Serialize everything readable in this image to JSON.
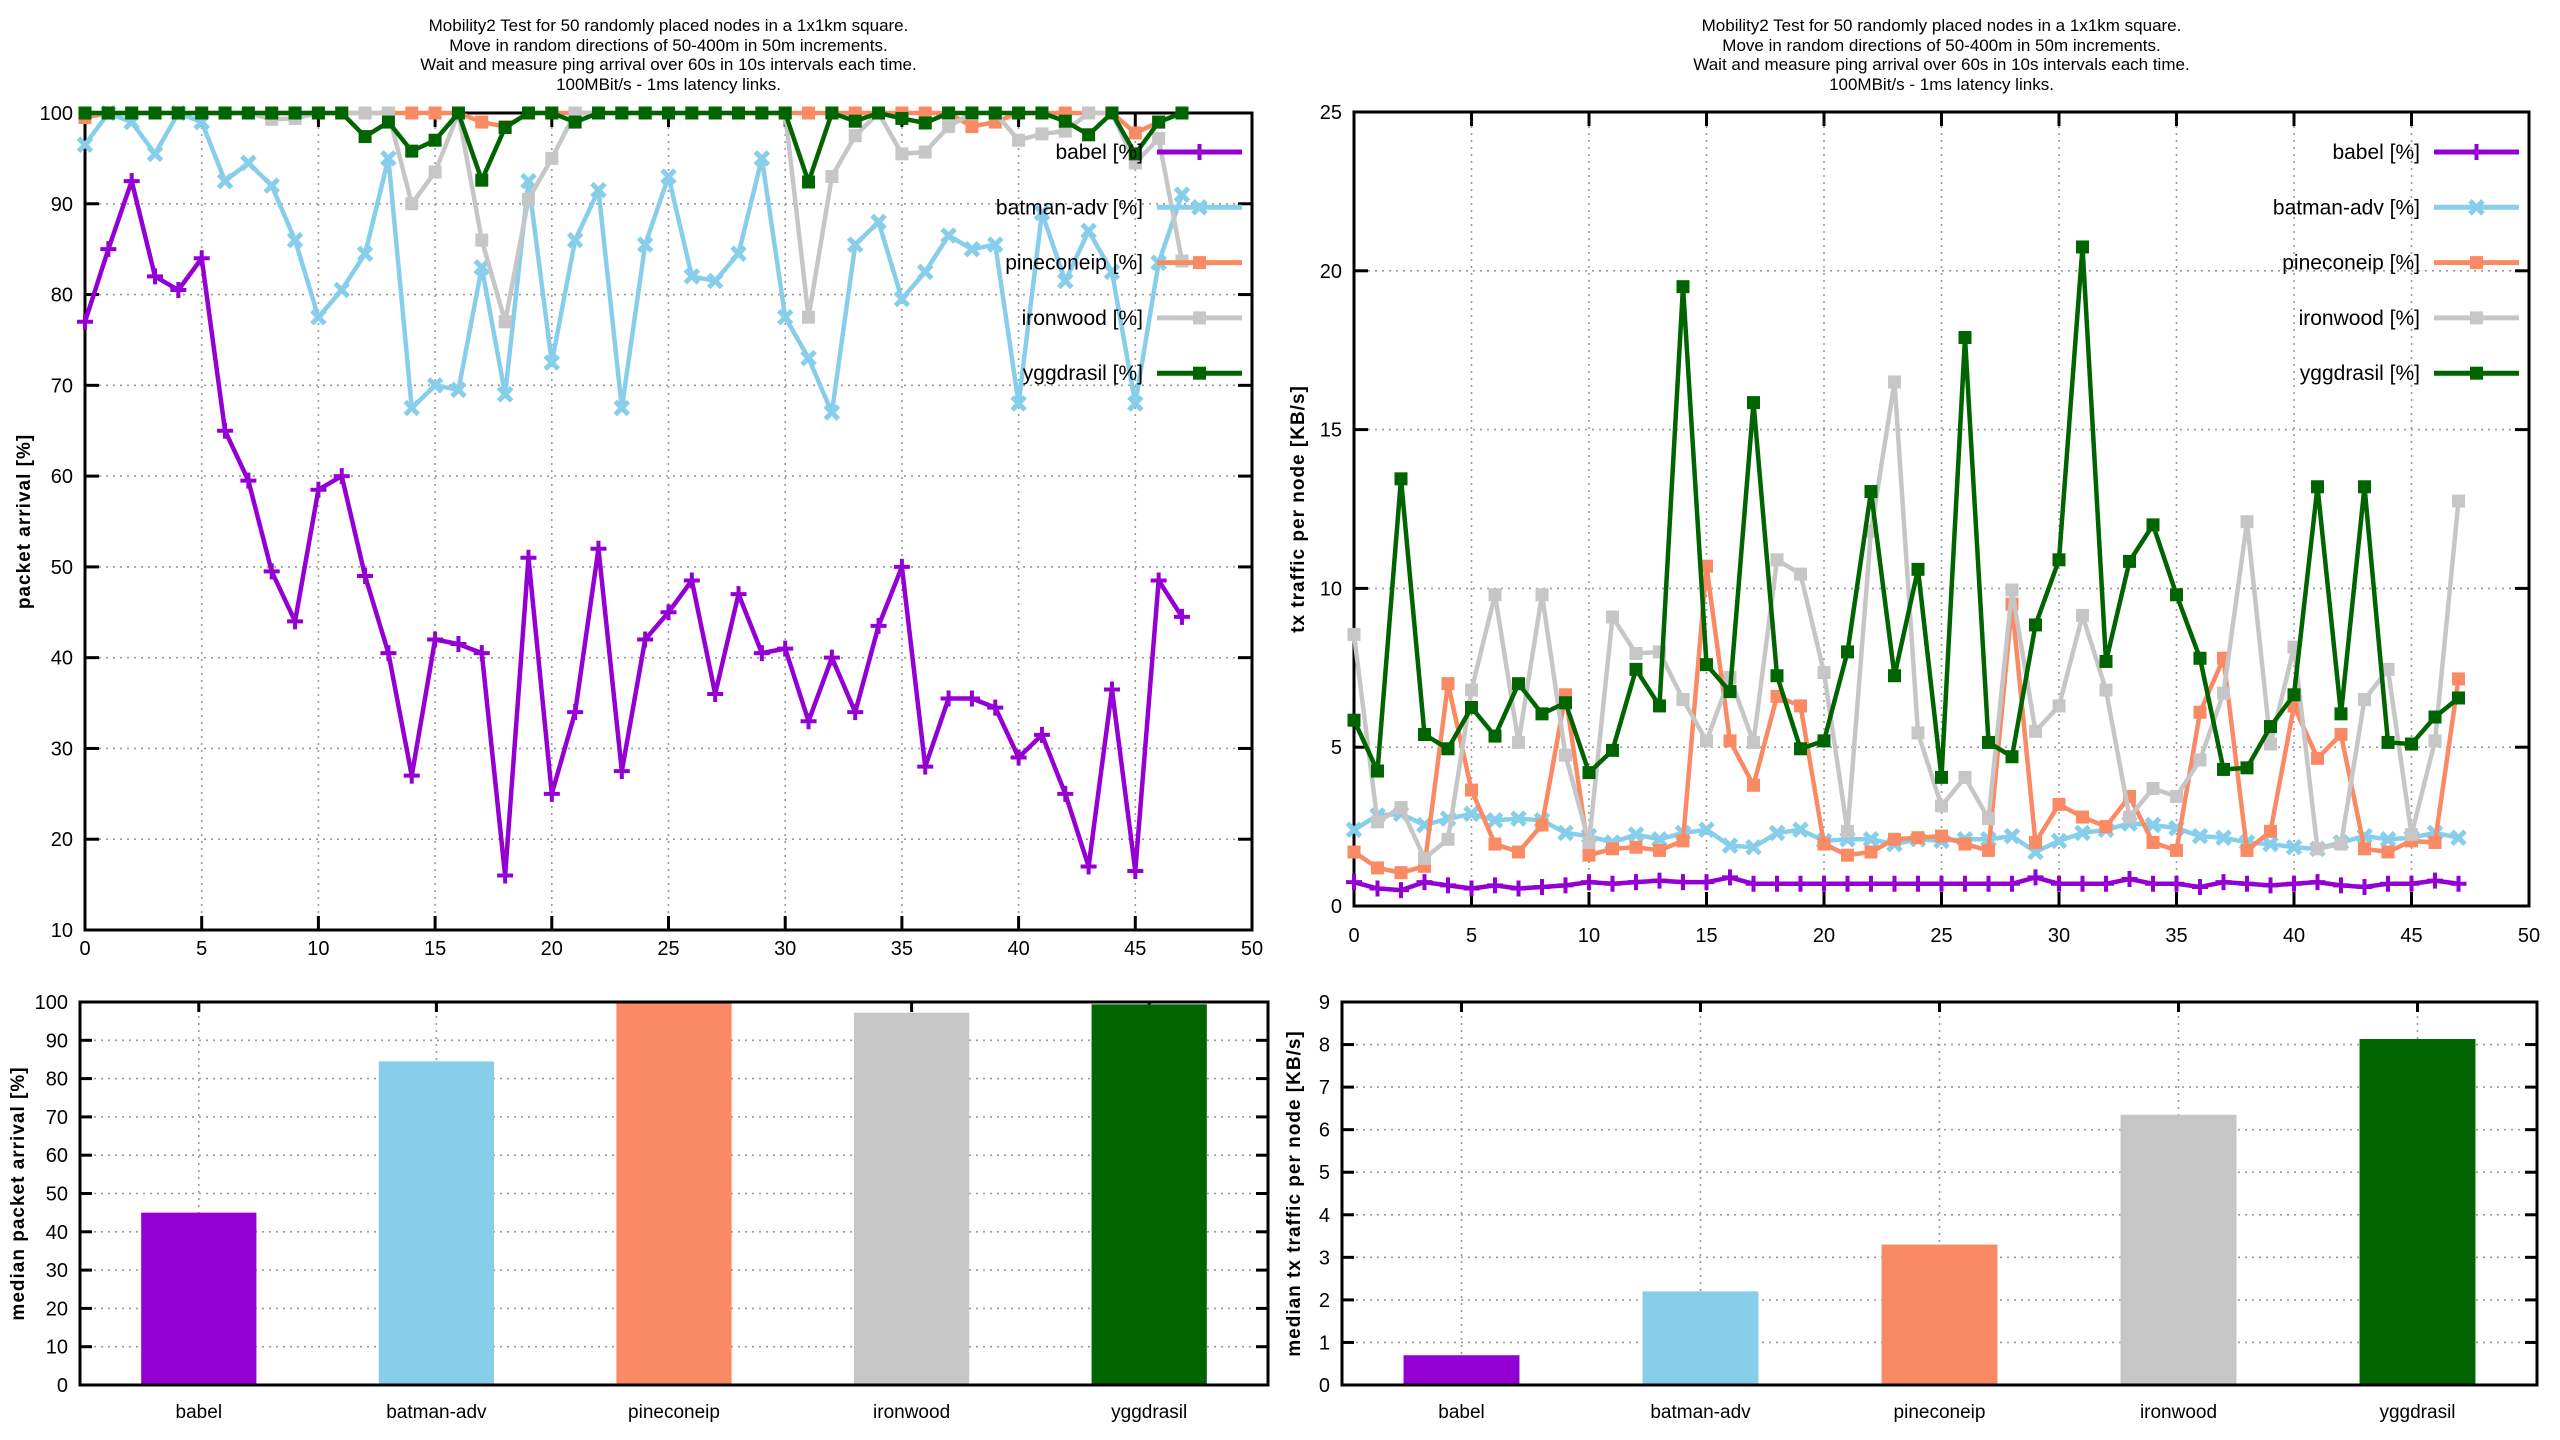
{
  "page": {
    "background": "#ffffff",
    "text_color": "#000000",
    "grid_color": "#9a9a9a",
    "axis_color": "#000000"
  },
  "title_lines": [
    "Mobility2 Test for 50 randomly placed nodes in a 1x1km square.",
    "Move in random directions of 50-400m in 50m increments.",
    "Wait and measure ping arrival over 60s in 10s intervals each time.",
    "100MBit/s - 1ms latency links."
  ],
  "palette": {
    "babel": "#9400d3",
    "batman-adv": "#87ceeb",
    "pineconeip": "#fa8a64",
    "ironwood": "#c6c6c6",
    "yggdrasil": "#006400"
  },
  "chart_data": [
    {
      "type": "line",
      "id": "packet-arrival-line",
      "title": [
        "Mobility2 Test for 50 randomly placed nodes in a 1x1km square.",
        "Move in random directions of 50-400m in 50m increments.",
        "Wait and measure ping arrival over 60s in 10s intervals each time.",
        "100MBit/s - 1ms latency links."
      ],
      "xlabel": "",
      "ylabel": "packet arrival [%]",
      "xlim": [
        0,
        50
      ],
      "ylim": [
        10,
        100
      ],
      "xtick_step": 5,
      "ytick_step": 10,
      "grid": true,
      "legend_position": "top-right-inside",
      "x": [
        0,
        1,
        2,
        3,
        4,
        5,
        6,
        7,
        8,
        9,
        10,
        11,
        12,
        13,
        14,
        15,
        16,
        17,
        18,
        19,
        20,
        21,
        22,
        23,
        24,
        25,
        26,
        27,
        28,
        29,
        30,
        31,
        32,
        33,
        34,
        35,
        36,
        37,
        38,
        39,
        40,
        41,
        42,
        43,
        44,
        45,
        46,
        47
      ],
      "series": [
        {
          "name": "babel",
          "label": "babel [%]",
          "color": "#9400d3",
          "marker": "plus",
          "values": [
            77,
            85,
            92.5,
            82,
            80.5,
            84,
            65,
            59.5,
            49.5,
            44,
            58.5,
            60,
            49,
            40.5,
            27,
            42,
            41.5,
            40.5,
            16,
            51,
            25,
            34,
            52,
            27.5,
            42,
            45,
            48.5,
            36,
            47,
            40.5,
            41,
            33,
            40,
            34,
            43.5,
            50,
            28,
            35.5,
            35.5,
            34.5,
            29,
            31.5,
            25,
            17,
            36.5,
            16.5,
            48.5,
            44.5
          ]
        },
        {
          "name": "batman-adv",
          "label": "batman-adv [%]",
          "color": "#87ceeb",
          "marker": "cross",
          "values": [
            96.5,
            100,
            99,
            95.5,
            100,
            99,
            92.5,
            94.5,
            92,
            86,
            77.5,
            80.5,
            84.5,
            95,
            67.5,
            70,
            69.5,
            83,
            69,
            92.5,
            72.5,
            86,
            91.5,
            67.5,
            85.5,
            93,
            82,
            81.5,
            84.5,
            95,
            77.5,
            73,
            67,
            85.5,
            88,
            79.5,
            82.5,
            86.5,
            85,
            85.5,
            68,
            89,
            81.5,
            87,
            82.5,
            68,
            83.5,
            91
          ]
        },
        {
          "name": "pineconeip",
          "label": "pineconeip [%]",
          "color": "#fa8a64",
          "marker": "square",
          "values": [
            99.5,
            100,
            100,
            100,
            100,
            100,
            100,
            100,
            100,
            100,
            100,
            100,
            100,
            100,
            100,
            100,
            100,
            99,
            98.5,
            100,
            100,
            100,
            100,
            100,
            100,
            100,
            100,
            100,
            100,
            100,
            100,
            100,
            100,
            100,
            100,
            100,
            100,
            100,
            98.5,
            99,
            100,
            100,
            100,
            100,
            100,
            97.8,
            99,
            100
          ]
        },
        {
          "name": "ironwood",
          "label": "ironwood [%]",
          "color": "#c6c6c6",
          "marker": "square",
          "values": [
            100,
            100,
            100,
            100,
            100,
            100,
            100,
            100,
            99.3,
            99.4,
            100,
            100,
            100,
            100,
            90,
            93.5,
            100,
            86,
            77,
            90.5,
            95,
            100,
            100,
            100,
            100,
            100,
            100,
            100,
            100,
            100,
            100,
            77.5,
            93,
            97.5,
            100,
            95.5,
            95.7,
            98.5,
            100,
            100,
            97,
            97.7,
            98,
            100,
            100,
            94.5,
            97.2,
            83.7
          ]
        },
        {
          "name": "yggdrasil",
          "label": "yggdrasil [%]",
          "color": "#006400",
          "marker": "square",
          "values": [
            100,
            100,
            100,
            100,
            100,
            100,
            100,
            100,
            100,
            100,
            100,
            100,
            97.4,
            99,
            95.8,
            97,
            100,
            92.6,
            98.4,
            100,
            100,
            99,
            100,
            100,
            100,
            100,
            100,
            100,
            100,
            100,
            100,
            92.4,
            100,
            99.1,
            100,
            99.4,
            98.9,
            100,
            100,
            100,
            100,
            100,
            99.1,
            97.6,
            100,
            95.5,
            99,
            100
          ]
        }
      ]
    },
    {
      "type": "line",
      "id": "tx-traffic-line",
      "title": [
        "Mobility2 Test for 50 randomly placed nodes in a 1x1km square.",
        "Move in random directions of 50-400m in 50m increments.",
        "Wait and measure ping arrival over 60s in 10s intervals each time.",
        "100MBit/s - 1ms latency links."
      ],
      "xlabel": "",
      "ylabel": "tx traffic per node [KB/s]",
      "xlim": [
        0,
        50
      ],
      "ylim": [
        0,
        25
      ],
      "xtick_step": 5,
      "ytick_step": 5,
      "grid": true,
      "legend_position": "top-right-inside",
      "x": [
        0,
        1,
        2,
        3,
        4,
        5,
        6,
        7,
        8,
        9,
        10,
        11,
        12,
        13,
        14,
        15,
        16,
        17,
        18,
        19,
        20,
        21,
        22,
        23,
        24,
        25,
        26,
        27,
        28,
        29,
        30,
        31,
        32,
        33,
        34,
        35,
        36,
        37,
        38,
        39,
        40,
        41,
        42,
        43,
        44,
        45,
        46,
        47
      ],
      "series": [
        {
          "name": "babel",
          "label": "babel [%]",
          "color": "#9400d3",
          "marker": "plus",
          "values": [
            0.75,
            0.55,
            0.5,
            0.75,
            0.65,
            0.55,
            0.65,
            0.55,
            0.6,
            0.65,
            0.75,
            0.7,
            0.75,
            0.8,
            0.75,
            0.75,
            0.9,
            0.7,
            0.7,
            0.7,
            0.7,
            0.7,
            0.7,
            0.7,
            0.7,
            0.7,
            0.7,
            0.7,
            0.7,
            0.9,
            0.7,
            0.7,
            0.7,
            0.85,
            0.7,
            0.7,
            0.6,
            0.75,
            0.7,
            0.65,
            0.7,
            0.75,
            0.65,
            0.6,
            0.7,
            0.7,
            0.8,
            0.7
          ]
        },
        {
          "name": "batman-adv",
          "label": "batman-adv [%]",
          "color": "#87ceeb",
          "marker": "cross",
          "values": [
            2.4,
            2.85,
            2.9,
            2.55,
            2.75,
            2.9,
            2.7,
            2.75,
            2.7,
            2.3,
            2.2,
            2.0,
            2.25,
            2.1,
            2.3,
            2.4,
            1.9,
            1.85,
            2.3,
            2.4,
            2.05,
            2.1,
            2.1,
            1.95,
            2.1,
            2.05,
            2.1,
            2.1,
            2.2,
            1.7,
            2.05,
            2.3,
            2.4,
            2.6,
            2.55,
            2.45,
            2.2,
            2.15,
            2.0,
            1.95,
            1.85,
            1.8,
            2.0,
            2.2,
            2.1,
            2.15,
            2.3,
            2.15
          ]
        },
        {
          "name": "pineconeip",
          "label": "pineconeip [%]",
          "color": "#fa8a64",
          "marker": "square",
          "values": [
            1.7,
            1.2,
            1.05,
            1.25,
            7.0,
            3.65,
            1.95,
            1.7,
            2.55,
            6.65,
            1.6,
            1.8,
            1.85,
            1.75,
            2.05,
            10.7,
            5.2,
            3.8,
            6.6,
            6.3,
            1.95,
            1.6,
            1.7,
            2.1,
            2.15,
            2.2,
            1.95,
            1.75,
            9.5,
            2.0,
            3.2,
            2.8,
            2.5,
            3.45,
            2.0,
            1.75,
            6.1,
            7.8,
            1.75,
            2.35,
            6.3,
            4.65,
            5.4,
            1.8,
            1.7,
            2.05,
            2.0,
            7.15
          ]
        },
        {
          "name": "ironwood",
          "label": "ironwood [%]",
          "color": "#c6c6c6",
          "marker": "square",
          "values": [
            8.55,
            2.65,
            3.1,
            1.5,
            2.1,
            6.8,
            9.8,
            5.15,
            9.8,
            4.75,
            2.0,
            9.1,
            7.95,
            8.0,
            6.5,
            5.2,
            7.2,
            5.15,
            10.9,
            10.45,
            7.35,
            2.35,
            11.8,
            16.5,
            5.45,
            3.15,
            4.05,
            2.75,
            9.95,
            5.5,
            6.3,
            9.15,
            6.8,
            2.8,
            3.7,
            3.45,
            4.6,
            6.7,
            12.1,
            5.1,
            8.15,
            1.8,
            1.95,
            6.5,
            7.45,
            2.25,
            5.2,
            12.75
          ]
        },
        {
          "name": "yggdrasil",
          "label": "yggdrasil [%]",
          "color": "#006400",
          "marker": "square",
          "values": [
            5.85,
            4.25,
            13.45,
            5.4,
            4.95,
            6.25,
            5.35,
            7.0,
            6.05,
            6.4,
            4.2,
            4.9,
            7.45,
            6.3,
            19.5,
            7.6,
            6.75,
            15.85,
            7.25,
            4.95,
            5.2,
            8.0,
            13.05,
            7.25,
            10.6,
            4.05,
            17.9,
            5.15,
            4.7,
            8.85,
            10.9,
            20.75,
            7.7,
            10.85,
            12.0,
            9.8,
            7.8,
            4.3,
            4.35,
            5.65,
            6.65,
            13.2,
            6.05,
            13.2,
            5.15,
            5.1,
            5.95,
            6.55
          ]
        }
      ]
    },
    {
      "type": "bar",
      "id": "median-packet-arrival-bar",
      "title": [],
      "xlabel": "",
      "ylabel": "median packet arrival [%]",
      "ylim": [
        0,
        100
      ],
      "ytick_step": 10,
      "grid": true,
      "categories": [
        "babel",
        "batman-adv",
        "pineconeip",
        "ironwood",
        "yggdrasil"
      ],
      "values": [
        45,
        84.5,
        100,
        97.2,
        99.4
      ],
      "colors": [
        "#9400d3",
        "#87ceeb",
        "#fa8a64",
        "#c6c6c6",
        "#006400"
      ]
    },
    {
      "type": "bar",
      "id": "median-tx-traffic-bar",
      "title": [],
      "xlabel": "",
      "ylabel": "median tx traffic per node [KB/s]",
      "ylim": [
        0,
        9
      ],
      "ytick_step": 1,
      "grid": true,
      "categories": [
        "babel",
        "batman-adv",
        "pineconeip",
        "ironwood",
        "yggdrasil"
      ],
      "values": [
        0.7,
        2.2,
        3.3,
        6.35,
        8.13
      ],
      "colors": [
        "#9400d3",
        "#87ceeb",
        "#fa8a64",
        "#c6c6c6",
        "#006400"
      ]
    }
  ]
}
